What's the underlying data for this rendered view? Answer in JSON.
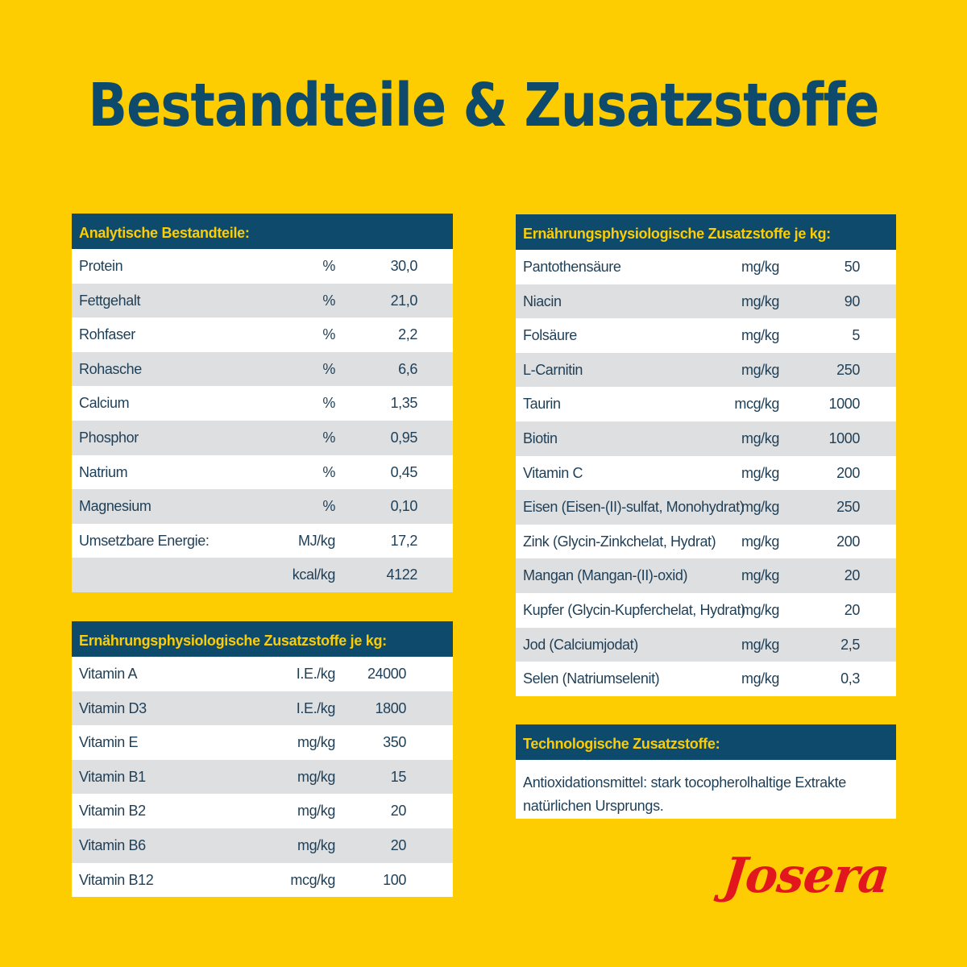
{
  "title": "Bestandteile & Zusatzstoffe",
  "analytical": {
    "header": "Analytische Bestandteile:",
    "rows": [
      {
        "name": "Protein",
        "unit": "%",
        "value": "30,0"
      },
      {
        "name": "Fettgehalt",
        "unit": "%",
        "value": "21,0"
      },
      {
        "name": "Rohfaser",
        "unit": "%",
        "value": "2,2"
      },
      {
        "name": "Rohasche",
        "unit": "%",
        "value": "6,6"
      },
      {
        "name": "Calcium",
        "unit": "%",
        "value": "1,35"
      },
      {
        "name": "Phosphor",
        "unit": "%",
        "value": "0,95"
      },
      {
        "name": "Natrium",
        "unit": "%",
        "value": "0,45"
      },
      {
        "name": "Magnesium",
        "unit": "%",
        "value": "0,10"
      },
      {
        "name": "Umsetzbare Energie:",
        "unit": "MJ/kg",
        "value": "17,2"
      },
      {
        "name": "",
        "unit": "kcal/kg",
        "value": "4122"
      }
    ]
  },
  "vitamins": {
    "header": "Ernährungsphysiologische Zusatzstoffe je kg:",
    "rows": [
      {
        "name": "Vitamin A",
        "unit": "I.E./kg",
        "value": "24000"
      },
      {
        "name": "Vitamin D3",
        "unit": "I.E./kg",
        "value": "1800"
      },
      {
        "name": "Vitamin E",
        "unit": "mg/kg",
        "value": "350"
      },
      {
        "name": "Vitamin B1",
        "unit": "mg/kg",
        "value": "15"
      },
      {
        "name": "Vitamin B2",
        "unit": "mg/kg",
        "value": "20"
      },
      {
        "name": "Vitamin B6",
        "unit": "mg/kg",
        "value": "20"
      },
      {
        "name": "Vitamin B12",
        "unit": "mcg/kg",
        "value": "100"
      }
    ]
  },
  "additives": {
    "header": "Ernährungsphysiologische Zusatzstoffe je kg:",
    "rows": [
      {
        "name": "Pantothensäure",
        "unit": "mg/kg",
        "value": "50"
      },
      {
        "name": "Niacin",
        "unit": "mg/kg",
        "value": "90"
      },
      {
        "name": "Folsäure",
        "unit": "mg/kg",
        "value": "5"
      },
      {
        "name": "L-Carnitin",
        "unit": "mg/kg",
        "value": "250"
      },
      {
        "name": "Taurin",
        "unit": "mcg/kg",
        "value": "1000"
      },
      {
        "name": "Biotin",
        "unit": "mg/kg",
        "value": "1000"
      },
      {
        "name": "Vitamin C",
        "unit": "mg/kg",
        "value": "200"
      },
      {
        "name": "Eisen (Eisen-(II)-sulfat, Monohydrat)",
        "unit": "mg/kg",
        "value": "250"
      },
      {
        "name": "Zink (Glycin-Zinkchelat, Hydrat)",
        "unit": "mg/kg",
        "value": "200"
      },
      {
        "name": "Mangan (Mangan-(II)-oxid)",
        "unit": "mg/kg",
        "value": "20"
      },
      {
        "name": "Kupfer (Glycin-Kupferchelat, Hydrat)",
        "unit": "mg/kg",
        "value": "20"
      },
      {
        "name": "Jod (Calciumjodat)",
        "unit": "mg/kg",
        "value": "2,5"
      },
      {
        "name": "Selen (Natriumselenit)",
        "unit": "mg/kg",
        "value": "0,3"
      }
    ]
  },
  "technological": {
    "header": "Technologische Zusatzstoffe:",
    "line1": "Antioxidationsmittel: stark tocopherolhaltige Extrakte",
    "line2": "natürlichen Ursprungs."
  },
  "brand": "Josera",
  "colors": {
    "background": "#fdcd02",
    "header_bg": "#0d4a6b",
    "header_text": "#fdcd02",
    "row_alt": "#dddfe1",
    "brand_red": "#e2161d"
  }
}
